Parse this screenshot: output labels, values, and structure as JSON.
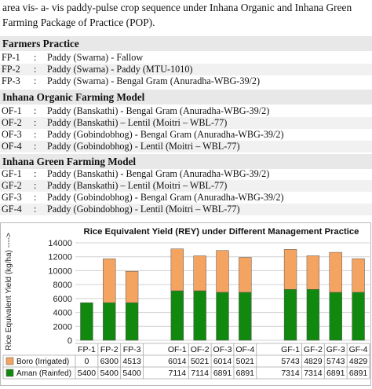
{
  "intro": {
    "line1": "area  vis- a- vis  paddy-pulse crop sequence under Inhana Organic and Inhana Green",
    "line2": "Farming Package of Practice (POP)."
  },
  "farmers": {
    "heading": "Farmers Practice",
    "rows": [
      {
        "code": "FP-1",
        "colon": ":",
        "desc": "Paddy (Swarna) - Fallow"
      },
      {
        "code": "FP-2",
        "colon": ":",
        "desc": "Paddy (Swarna) - Paddy (MTU-1010)"
      },
      {
        "code": "FP-3",
        "colon": ":",
        "desc": "Paddy (Swarna) - Bengal Gram (Anuradha-WBG-39/2)"
      }
    ]
  },
  "organic": {
    "heading": "Inhana Organic  Farming Model",
    "rows": [
      {
        "code": "OF-1",
        "colon": ":",
        "desc": "Paddy (Banskathi) - Bengal Gram (Anuradha-WBG-39/2)"
      },
      {
        "code": "OF-2",
        "colon": ":",
        "desc": "Paddy (Banskathi) – Lentil (Moitri – WBL-77)"
      },
      {
        "code": "OF-3",
        "colon": ":",
        "desc": "Paddy (Gobindobhog) - Bengal Gram (Anuradha-WBG-39/2)"
      },
      {
        "code": "OF-4",
        "colon": ":",
        "desc": "Paddy (Gobindobhog) - Lentil (Moitri – WBL-77)"
      }
    ]
  },
  "green": {
    "heading": "Inhana Green Farming Model",
    "rows": [
      {
        "code": "GF-1",
        "colon": ":",
        "desc": "Paddy (Banskathi) - Bengal Gram (Anuradha-WBG-39/2)"
      },
      {
        "code": "GF-2",
        "colon": ":",
        "desc": "Paddy (Banskathi) – Lentil (Moitri – WBL-77)"
      },
      {
        "code": "GF-3",
        "colon": ":",
        "desc": "Paddy (Gobindobhog) - Bengal Gram (Anuradha-WBG-39/2)"
      },
      {
        "code": "GF-4",
        "colon": ":",
        "desc": "Paddy (Gobindobhog) - Lentil (Moitri – WBL-77)"
      }
    ]
  },
  "chart_data": {
    "type": "bar",
    "stacked": true,
    "title": "Rice Equivalent Yield (REY)  under Different Management Practice",
    "ylabel": "Rice Equivalent Yield  (kg/ha) ---->",
    "xlabel": "",
    "ylim": [
      0,
      14000
    ],
    "yticks": [
      0,
      2000,
      4000,
      6000,
      8000,
      10000,
      12000,
      14000
    ],
    "ytick_labels": [
      "0",
      "2000",
      "4000",
      "6000",
      "8000",
      "10000",
      "12000",
      "14000"
    ],
    "grid": true,
    "legend": "data-table-left",
    "groups": [
      [
        "FP-1",
        "FP-2",
        "FP-3"
      ],
      [
        "OF-1",
        "OF-2",
        "OF-3",
        "OF-4"
      ],
      [
        "GF-1",
        "GF-2",
        "GF-3",
        "GF-4"
      ]
    ],
    "categories": [
      "FP-1",
      "FP-2",
      "FP-3",
      "OF-1",
      "OF-2",
      "OF-3",
      "OF-4",
      "GF-1",
      "GF-2",
      "GF-3",
      "GF-4"
    ],
    "series": [
      {
        "name": "Aman (Rainfed)",
        "color": "#11890f",
        "values": [
          5400,
          5400,
          5400,
          7114,
          7114,
          6891,
          6891,
          7314,
          7314,
          6891,
          6891
        ]
      },
      {
        "name": "Boro (Irrigated)",
        "color": "#f4a460",
        "values": [
          0,
          6300,
          4513,
          6014,
          5021,
          6014,
          5021,
          5743,
          4829,
          5743,
          4829
        ]
      }
    ],
    "table_rows": [
      {
        "name": "Boro (Irrigated)",
        "color": "#f4a460",
        "values": [
          "0",
          "6300",
          "4513",
          "6014",
          "5021",
          "6014",
          "5021",
          "5743",
          "4829",
          "5743",
          "4829"
        ]
      },
      {
        "name": "Aman (Rainfed)",
        "color": "#11890f",
        "values": [
          "5400",
          "5400",
          "5400",
          "7114",
          "7114",
          "6891",
          "6891",
          "7314",
          "7314",
          "6891",
          "6891"
        ]
      }
    ]
  }
}
